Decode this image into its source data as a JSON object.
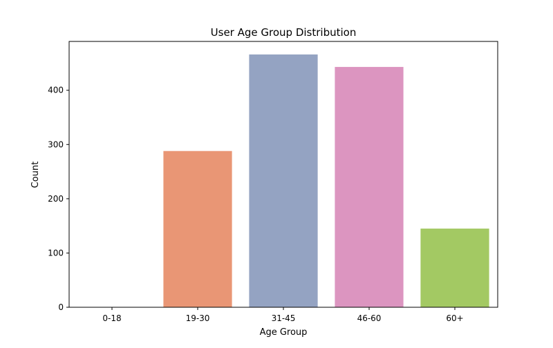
{
  "chart_data": {
    "type": "bar",
    "title": "User Age Group Distribution",
    "xlabel": "Age Group",
    "ylabel": "Count",
    "categories": [
      "0-18",
      "19-30",
      "31-45",
      "46-60",
      "60+"
    ],
    "values": [
      0,
      288,
      466,
      443,
      145
    ],
    "colors": [
      "#66c2a5",
      "#e99675",
      "#94a3c2",
      "#dc95c0",
      "#a3c963"
    ],
    "yticks": [
      0,
      100,
      200,
      300,
      400
    ],
    "ylim": [
      0,
      490
    ],
    "grid": false,
    "legend": "none"
  }
}
